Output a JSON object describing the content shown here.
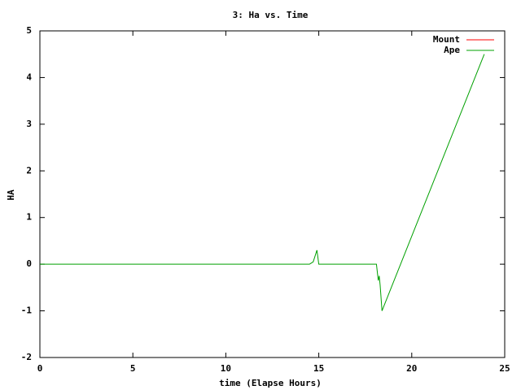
{
  "chart_data": {
    "type": "line",
    "title": "3: Ha vs. Time",
    "x_label": "time (Elapse Hours)",
    "y_label": "HA",
    "x": [
      0,
      14.5,
      14.7,
      14.9,
      15.0,
      18.1,
      18.2,
      18.25,
      18.3,
      18.4,
      19,
      20,
      21,
      22,
      23,
      23.9
    ],
    "series": [
      {
        "name": "Mount",
        "color": "#ff0000",
        "values": [
          null,
          null,
          null,
          null,
          null,
          null,
          null,
          null,
          null,
          null,
          null,
          null,
          null,
          null,
          null,
          null
        ]
      },
      {
        "name": "Ape",
        "color": "#00a000",
        "values": [
          0,
          0,
          0.05,
          0.3,
          0,
          0,
          -0.35,
          -0.25,
          -0.45,
          -1.0,
          -0.4,
          0.6,
          1.6,
          2.6,
          3.6,
          4.5
        ]
      }
    ],
    "xlim": [
      0,
      25
    ],
    "xticks": [
      0,
      5,
      10,
      15,
      20,
      25
    ],
    "ylim": [
      -2,
      5
    ],
    "yticks": [
      -2,
      -1,
      0,
      1,
      2,
      3,
      4,
      5
    ],
    "legend": "top-right"
  }
}
